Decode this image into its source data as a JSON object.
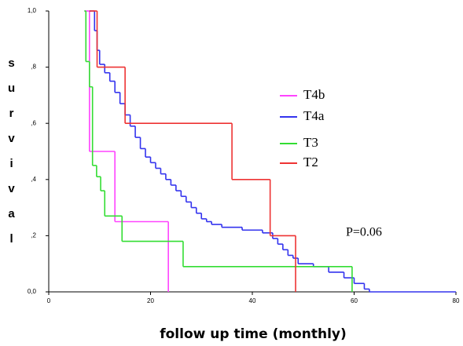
{
  "chart_data": {
    "type": "step",
    "xlabel": "follow up time (monthly)",
    "ylabel": "survival",
    "annotation": "P=0.06",
    "xlim": [
      0,
      80
    ],
    "xticks": [
      0,
      20,
      40,
      60,
      80
    ],
    "ylim": [
      0,
      1
    ],
    "yticks": [
      {
        "value": 0,
        "label": "0,0"
      },
      {
        "value": 0.2,
        "label": ",2"
      },
      {
        "value": 0.4,
        "label": ",4"
      },
      {
        "value": 0.6,
        "label": ",6"
      },
      {
        "value": 0.8,
        "label": ",8"
      },
      {
        "value": 1,
        "label": "1,0"
      }
    ],
    "series": [
      {
        "name": "T4b",
        "color": "#ff44ff",
        "x": [
          7,
          8,
          13,
          23.5
        ],
        "values": [
          1,
          0.5,
          0.25,
          0
        ]
      },
      {
        "name": "T4a",
        "color": "#3333ee",
        "x": [
          8,
          9,
          9.5,
          10,
          11,
          12,
          13,
          14,
          15,
          16,
          17,
          18,
          19,
          20,
          21,
          22,
          23,
          24,
          25,
          26,
          27,
          28,
          29,
          30,
          31,
          32,
          34,
          38,
          42,
          44,
          45,
          46,
          47,
          48,
          49,
          52,
          55,
          58,
          60,
          62,
          63,
          80
        ],
        "values": [
          1,
          0.93,
          0.86,
          0.81,
          0.78,
          0.75,
          0.71,
          0.67,
          0.63,
          0.59,
          0.55,
          0.51,
          0.48,
          0.46,
          0.44,
          0.42,
          0.4,
          0.38,
          0.36,
          0.34,
          0.32,
          0.3,
          0.28,
          0.26,
          0.25,
          0.24,
          0.23,
          0.22,
          0.21,
          0.19,
          0.17,
          0.15,
          0.13,
          0.12,
          0.1,
          0.09,
          0.07,
          0.05,
          0.03,
          0.01,
          0,
          0
        ]
      },
      {
        "name": "T3",
        "color": "#33dd33",
        "x": [
          7,
          7.3,
          8,
          8.6,
          9.4,
          10.2,
          11,
          14.4,
          26.4,
          59.6
        ],
        "values": [
          1,
          0.82,
          0.73,
          0.45,
          0.41,
          0.36,
          0.27,
          0.18,
          0.09,
          0
        ]
      },
      {
        "name": "T2",
        "color": "#ee3333",
        "x": [
          8,
          9.5,
          15,
          36,
          43.5,
          48.5
        ],
        "values": [
          1,
          0.8,
          0.6,
          0.4,
          0.2,
          0
        ]
      }
    ]
  }
}
